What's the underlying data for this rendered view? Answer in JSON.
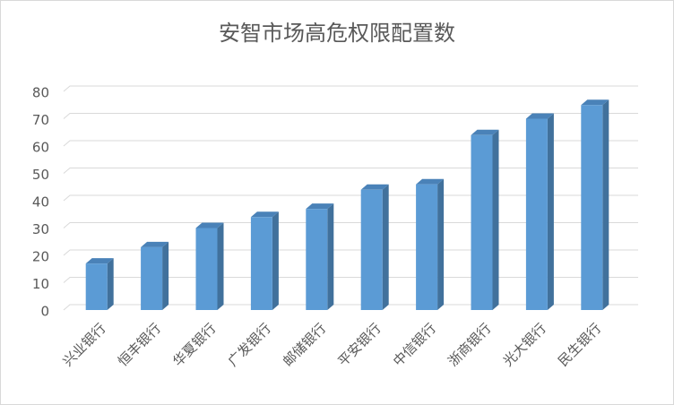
{
  "chart_data": {
    "type": "bar3d",
    "title": "安智市场高危权限配置数",
    "categories": [
      "兴业银行",
      "恒丰银行",
      "华夏银行",
      "广发银行",
      "邮储银行",
      "平安银行",
      "中信银行",
      "浙商银行",
      "光大银行",
      "民生银行"
    ],
    "values": [
      17,
      23,
      30,
      34,
      37,
      44,
      46,
      64,
      70,
      75
    ],
    "color": "#5b9bd5",
    "ylim": [
      0,
      80
    ],
    "yticks": [
      0,
      10,
      20,
      30,
      40,
      50,
      60,
      70,
      80
    ],
    "grid": true
  }
}
